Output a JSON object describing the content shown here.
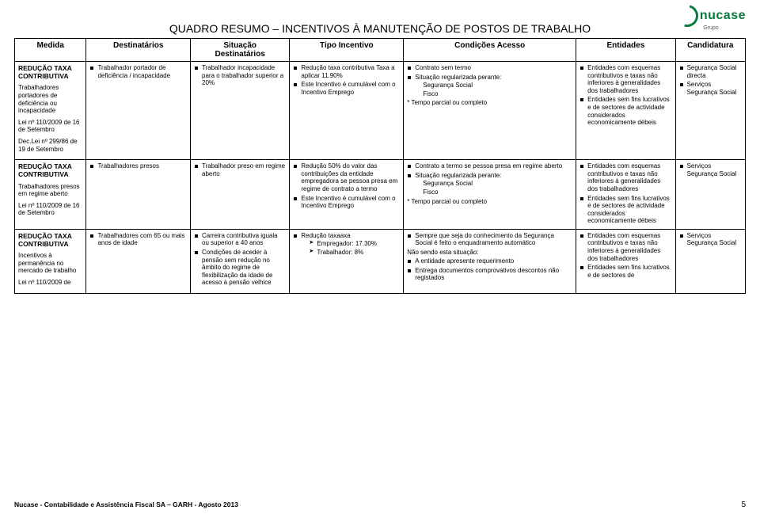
{
  "logo": {
    "brand": "nucase",
    "sub": "Grupo"
  },
  "title": "QUADRO RESUMO – INCENTIVOS À MANUTENÇÃO DE POSTOS DE TRABALHO",
  "headers": {
    "c1": "Medida",
    "c2": "Destinatários",
    "c3_a": "Situação",
    "c3_b": "Destinatários",
    "c4": "Tipo Incentivo",
    "c5": "Condições Acesso",
    "c6": "Entidades",
    "c7": "Candidatura"
  },
  "rows": [
    {
      "medida": {
        "title": "REDUÇÃO TAXA CONTRIBUTIVA",
        "lines": [
          "Trabalhadores portadores de deficiência ou incapacidade",
          "Lei nº 110/2009 de 16 de Setembro",
          "Dec.Lei nº 299/86 de 19 de Setembro"
        ]
      },
      "dest": [
        "Trabalhador portador de deficiência / incapacidade"
      ],
      "situ": [
        "Trabalhador incapacidade para o trabalhador superior a 20%"
      ],
      "tipo": [
        "Redução taxa contributiva Taxa a aplicar 11.90%",
        "Este Incentivo é cumulável com o Incentivo Emprego"
      ],
      "cond": {
        "bullets": [
          "Contrato sem termo",
          {
            "text": "Situação regularizada perante:",
            "sub": [
              "Segurança Social",
              "Fisco"
            ]
          }
        ],
        "tail": "* Tempo parcial ou completo"
      },
      "ent": [
        "Entidades com esquemas contributivos e taxas não inferiores à generalidades dos trabalhadores",
        "Entidades sem fins lucrativos e de sectores de actividade considerados economicamente débeis"
      ],
      "cand": [
        "Segurança Social directa",
        "Serviços Segurança Social"
      ]
    },
    {
      "medida": {
        "title": "REDUÇÃO TAXA CONTRIBUTIVA",
        "lines": [
          "Trabalhadores presos em regime aberto",
          "Lei nº 110/2009 de 16 de Setembro"
        ]
      },
      "dest": [
        "Trabalhadores presos"
      ],
      "situ": [
        "Trabalhador preso em regime aberto"
      ],
      "tipo": [
        "Redução 50% do valor das contribuições da entidade empregadora se pessoa presa em regime de contrato a termo",
        "Este Incentivo é cumulável com o Incentivo Emprego"
      ],
      "cond": {
        "bullets": [
          "Contrato a termo se pessoa presa em regime aberto",
          {
            "text": "Situação regularizada perante:",
            "sub": [
              "Segurança Social",
              "Fisco"
            ]
          }
        ],
        "tail": "* Tempo parcial ou completo"
      },
      "ent": [
        "Entidades com esquemas contributivos e taxas não inferiores à generalidades dos trabalhadores",
        "Entidades sem fins lucrativos e de sectores de actividade considerados economicamente débeis"
      ],
      "cand": [
        "Serviços Segurança Social"
      ]
    },
    {
      "medida": {
        "title": "REDUÇÃO TAXA CONTRIBUTIVA",
        "lines": [
          "Incentivos à permanência no mercado de trabalho",
          "Lei nº 110/2009 de"
        ]
      },
      "dest": [
        "Trabalhadores com 65 ou mais anos de idade"
      ],
      "situ": [
        "Carreira contributiva iguala ou superior a 40 anos",
        "Condições de aceder à pensão sem redução no âmbito do regime de flexibilização da idade de acesso à pensão velhice"
      ],
      "tipo": [
        {
          "text": "Redução taxaaxa",
          "chev": [
            "Empregador: 17.30%",
            "Trabalhador: 8%"
          ]
        }
      ],
      "cond": {
        "bullets": [
          "Sempre que seja do conhecimento da Segurança Social é feito o enquadramento automático"
        ],
        "mid": "Não sendo esta situação:",
        "bullets2": [
          "A entidade apresente requerimento",
          "Entrega documentos comprovativos descontos não registados"
        ]
      },
      "ent": [
        "Entidades com esquemas contributivos e taxas não inferiores à generalidades dos trabalhadores",
        "Entidades sem fins lucrativos e de sectores de"
      ],
      "cand": [
        "Serviços Segurança Social"
      ]
    }
  ],
  "footer": {
    "left": "Nucase - Contabilidade e Assistência Fiscal SA – GARH - Agosto 2013",
    "page": "5"
  }
}
